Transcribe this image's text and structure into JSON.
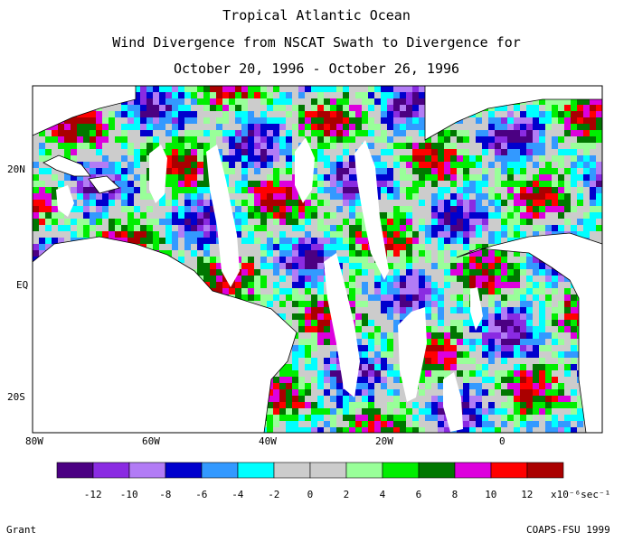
{
  "title": {
    "line1": "Tropical Atlantic Ocean",
    "line2": "Wind Divergence from NSCAT Swath to Divergence for",
    "line3": "October 20, 1996 - October 26, 1996"
  },
  "axes": {
    "lon_labels": [
      "80W",
      "60W",
      "40W",
      "20W",
      "0"
    ],
    "lat_labels": [
      "20N",
      "EQ",
      "20S"
    ]
  },
  "colorbar": {
    "colors": [
      "#4b0082",
      "#8a2be2",
      "#b27cf5",
      "#0000cd",
      "#3399ff",
      "#00ffff",
      "#cccccc",
      "#cccccc",
      "#99ff99",
      "#00ee00",
      "#007700",
      "#dd00dd",
      "#ff0000",
      "#aa0000"
    ],
    "tick_labels": [
      "-12",
      "-10",
      "-8",
      "-6",
      "-4",
      "-2",
      "0",
      "2",
      "4",
      "6",
      "8",
      "10",
      "12"
    ],
    "units": "x10⁻⁶sec⁻¹"
  },
  "credits": {
    "left": "Grant",
    "right": "COAPS-FSU 1999"
  }
}
